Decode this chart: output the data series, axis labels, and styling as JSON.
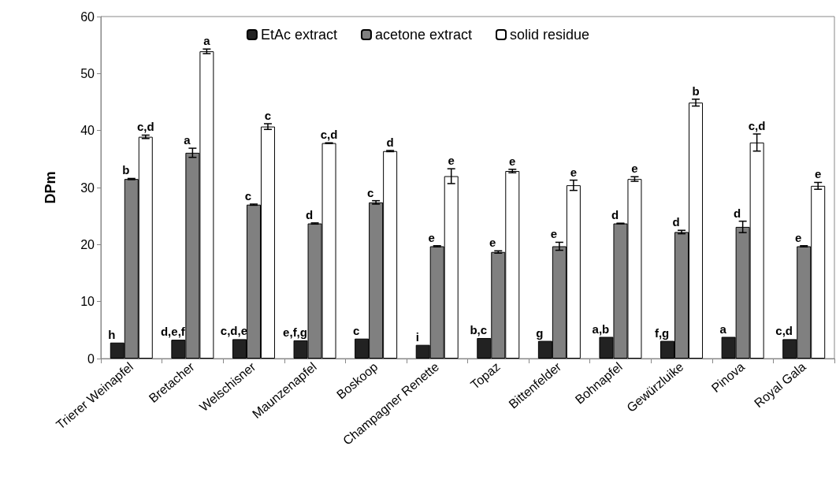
{
  "chart_data": {
    "type": "bar",
    "ylabel": "DPm",
    "categories": [
      "Trierer Weinapfel",
      "Bretacher",
      "Welschisner",
      "Maunzenapfel",
      "Boskoop",
      "Champagner Renette",
      "Topaz",
      "Bittenfelder",
      "Bohnapfel",
      "Gewürzluike",
      "Pinova",
      "Royal Gala"
    ],
    "series": [
      {
        "name": "EtAc extract",
        "color": "#222222",
        "values": [
          2.8,
          3.3,
          3.4,
          3.2,
          3.5,
          2.4,
          3.6,
          3.1,
          3.8,
          3.1,
          3.8,
          3.4
        ],
        "value_labels": [
          "h",
          "d,e,f",
          "c,d,e",
          "e,f,g",
          "c",
          "i",
          "b,c",
          "g",
          "a,b",
          "f,g",
          "a",
          "c,d"
        ]
      },
      {
        "name": "acetone extract",
        "color": "#808080",
        "values": [
          31.5,
          36.1,
          27.0,
          23.7,
          27.4,
          19.7,
          18.7,
          19.7,
          23.7,
          22.2,
          23.1,
          19.7
        ],
        "errors": [
          0.1,
          0.8,
          0.1,
          0.1,
          0.3,
          0.1,
          0.2,
          0.7,
          0.05,
          0.3,
          1.0,
          0.1
        ],
        "value_labels": [
          "b",
          "a",
          "c",
          "d",
          "c",
          "e",
          "e",
          "e",
          "d",
          "d",
          "d",
          "e"
        ]
      },
      {
        "name": "solid residue",
        "color": "#ffffff",
        "values": [
          38.9,
          53.9,
          40.7,
          37.8,
          36.4,
          32.0,
          32.9,
          30.4,
          31.5,
          44.9,
          37.9,
          30.3
        ],
        "errors": [
          0.3,
          0.4,
          0.5,
          0.05,
          0.1,
          1.3,
          0.3,
          0.9,
          0.4,
          0.6,
          1.5,
          0.6
        ],
        "value_labels": [
          "c,d",
          "a",
          "c",
          "c,d",
          "d",
          "e",
          "e",
          "e",
          "e",
          "b",
          "c,d",
          "e"
        ]
      }
    ],
    "ylim": [
      0,
      60
    ],
    "yticks": [
      0,
      10,
      20,
      30,
      40,
      50,
      60
    ],
    "legend": "top",
    "grid": false
  }
}
